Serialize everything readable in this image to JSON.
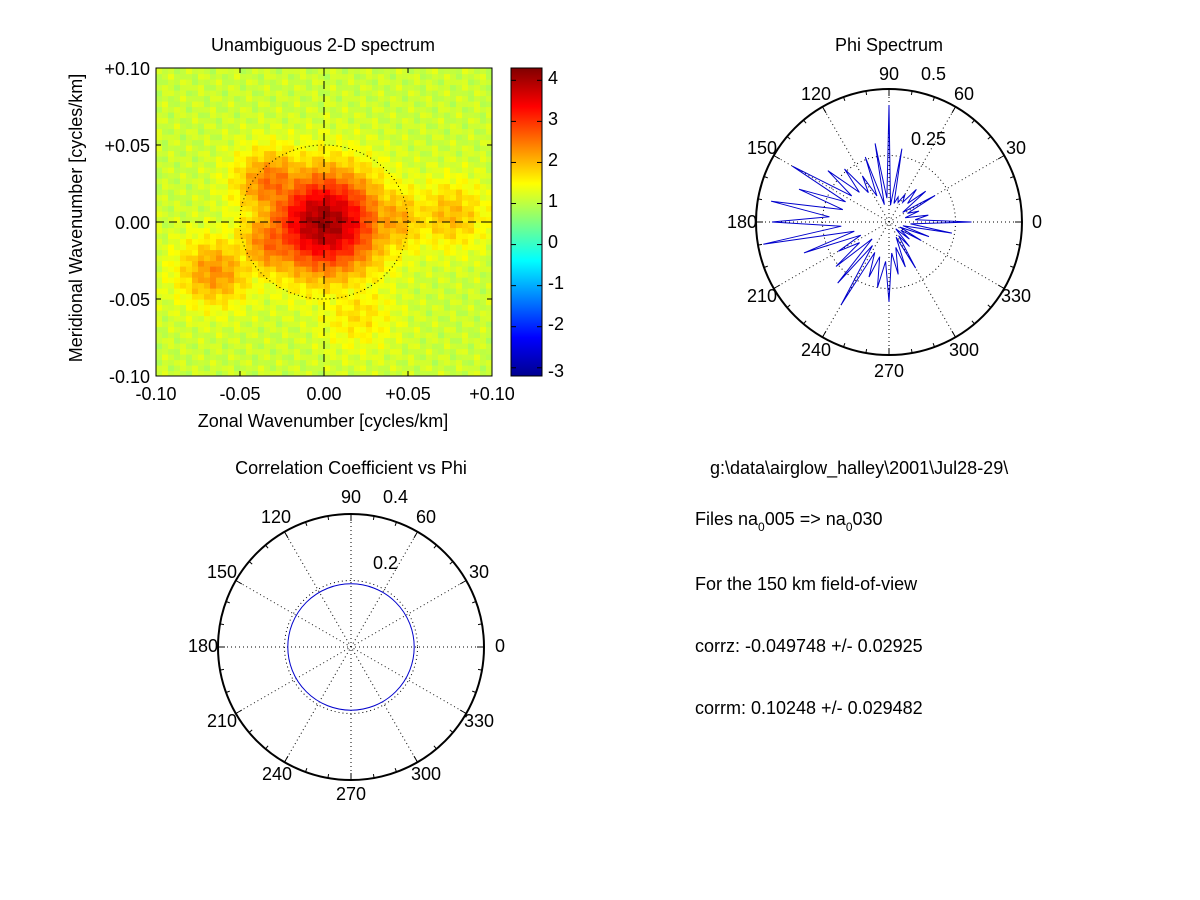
{
  "chart_data": [
    {
      "type": "heatmap",
      "title": "Unambiguous 2-D spectrum",
      "xlabel": "Zonal Wavenumber [cycles/km]",
      "ylabel": "Meridional Wavenumber [cycles/km]",
      "xlim": [
        -0.1,
        0.1
      ],
      "ylim": [
        -0.1,
        0.1
      ],
      "xticks": [
        "-0.10",
        "-0.05",
        "0.00",
        "+0.05",
        "+0.10"
      ],
      "yticks": [
        "+0.10",
        "+0.05",
        "0.00",
        "-0.05",
        "-0.10"
      ],
      "colorbar": {
        "ticks": [
          "4",
          "3",
          "2",
          "1",
          "0",
          "-1",
          "-2",
          "-3"
        ],
        "range": [
          -3.2,
          4.3
        ],
        "colormap": "jet"
      },
      "peaks": [
        {
          "x": 0.0,
          "y": 0.0,
          "value": 4.1
        },
        {
          "x": -0.03,
          "y": 0.025,
          "value": 2.6
        },
        {
          "x": -0.028,
          "y": -0.012,
          "value": 2.7
        },
        {
          "x": -0.065,
          "y": -0.032,
          "value": 2.3
        },
        {
          "x": 0.04,
          "y": 0.002,
          "value": 2.2
        },
        {
          "x": 0.075,
          "y": 0.005,
          "value": 2.0
        },
        {
          "x": 0.02,
          "y": -0.06,
          "value": 1.7
        }
      ],
      "background_level": 1.1,
      "guide_circle_radius": 0.05,
      "crosshair": "dashed",
      "grid": false
    },
    {
      "type": "polar-line",
      "title": "Phi Spectrum",
      "angle_labels": [
        "0",
        "30",
        "60",
        "90",
        "120",
        "150",
        "180",
        "210",
        "240",
        "270",
        "300",
        "330"
      ],
      "radial_labels": [
        "0.25",
        "0.5"
      ],
      "rmax": 0.5,
      "series_color": "#0000cc",
      "angles": [
        0,
        5,
        10,
        15,
        20,
        25,
        30,
        35,
        40,
        45,
        50,
        55,
        60,
        65,
        70,
        75,
        80,
        85,
        90,
        95,
        100,
        105,
        110,
        115,
        120,
        125,
        130,
        135,
        140,
        145,
        150,
        155,
        160,
        165,
        170,
        175,
        180,
        185,
        190,
        195,
        200,
        205,
        210,
        215,
        220,
        225,
        230,
        235,
        240,
        245,
        250,
        255,
        260,
        265,
        270,
        275,
        280,
        285,
        290,
        295,
        300,
        305,
        310,
        315,
        320,
        325,
        330,
        335,
        340,
        345,
        350,
        355
      ],
      "values": [
        0.31,
        0.22,
        0.15,
        0.14,
        0.12,
        0.17,
        0.2,
        0.14,
        0.18,
        0.22,
        0.16,
        0.2,
        0.12,
        0.18,
        0.1,
        0.16,
        0.28,
        0.14,
        0.44,
        0.2,
        0.3,
        0.15,
        0.26,
        0.24,
        0.2,
        0.3,
        0.26,
        0.35,
        0.3,
        0.38,
        0.42,
        0.4,
        0.36,
        0.4,
        0.45,
        0.5,
        0.44,
        0.4,
        0.48,
        0.3,
        0.34,
        0.26,
        0.22,
        0.3,
        0.26,
        0.2,
        0.3,
        0.24,
        0.36,
        0.28,
        0.22,
        0.3,
        0.25,
        0.33,
        0.3,
        0.26,
        0.2,
        0.22,
        0.18,
        0.14,
        0.2,
        0.14,
        0.12,
        0.08,
        0.1,
        0.12,
        0.14,
        0.1,
        0.16,
        0.12,
        0.24,
        0.18
      ],
      "dotted_circles": [
        0.25,
        0.5
      ]
    },
    {
      "type": "polar-line",
      "title": "Correlation Coefficient vs Phi",
      "angle_labels": [
        "0",
        "30",
        "60",
        "90",
        "120",
        "150",
        "180",
        "210",
        "240",
        "270",
        "300",
        "330"
      ],
      "radial_labels": [
        "0.2",
        "0.4"
      ],
      "rmax": 0.4,
      "series_color": "#0000cc",
      "constant_value": 0.19,
      "dotted_circles": [
        0.2,
        0.4
      ]
    }
  ],
  "info": {
    "path": "g:\\data\\airglow_halley\\2001\\Jul28-29\\",
    "files_prefix": "Files  na",
    "files_sub1": "0",
    "files_mid": "005  =>  na",
    "files_sub2": "0",
    "files_suffix": "030",
    "fov": "For the  150 km field-of-view",
    "corrz": "corrz: -0.049748 +/- 0.02925",
    "corrm": "corrm: 0.10248 +/- 0.029482"
  }
}
